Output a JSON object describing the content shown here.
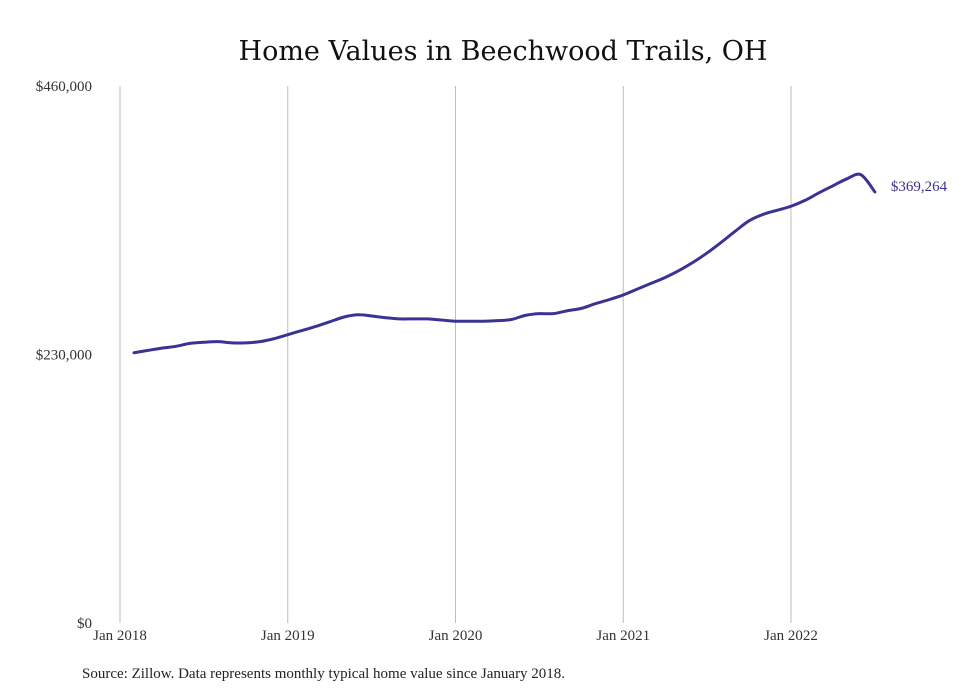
{
  "chart_data": {
    "type": "line",
    "title": "Home Values in Beechwood Trails, OH",
    "xlabel": "",
    "ylabel": "",
    "ylim": [
      0,
      460000
    ],
    "yticks": [
      {
        "value": 0,
        "label": "$0"
      },
      {
        "value": 230000,
        "label": "$230,000"
      },
      {
        "value": 460000,
        "label": "$460,000"
      }
    ],
    "xticks": [
      {
        "value": "2018-01",
        "label": "Jan 2018"
      },
      {
        "value": "2019-01",
        "label": "Jan 2019"
      },
      {
        "value": "2020-01",
        "label": "Jan 2020"
      },
      {
        "value": "2021-01",
        "label": "Jan 2021"
      },
      {
        "value": "2022-01",
        "label": "Jan 2022"
      }
    ],
    "grid": "vertical",
    "end_label": "$369,264",
    "series": [
      {
        "color": "#3a3393",
        "x": [
          "2018-02",
          "2018-03",
          "2018-04",
          "2018-05",
          "2018-06",
          "2018-07",
          "2018-08",
          "2018-09",
          "2018-10",
          "2018-11",
          "2018-12",
          "2019-01",
          "2019-02",
          "2019-03",
          "2019-04",
          "2019-05",
          "2019-06",
          "2019-07",
          "2019-08",
          "2019-09",
          "2019-10",
          "2019-11",
          "2019-12",
          "2020-01",
          "2020-02",
          "2020-03",
          "2020-04",
          "2020-05",
          "2020-06",
          "2020-07",
          "2020-08",
          "2020-09",
          "2020-10",
          "2020-11",
          "2020-12",
          "2021-01",
          "2021-02",
          "2021-03",
          "2021-04",
          "2021-05",
          "2021-06",
          "2021-07",
          "2021-08",
          "2021-09",
          "2021-10",
          "2021-11",
          "2021-12",
          "2022-01",
          "2022-02",
          "2022-03",
          "2022-04",
          "2022-05",
          "2022-06",
          "2022-07"
        ],
        "values": [
          231500,
          233500,
          235500,
          237000,
          239500,
          240500,
          241000,
          240000,
          240000,
          241000,
          243500,
          247000,
          250500,
          254000,
          258000,
          262000,
          264000,
          263000,
          261500,
          260500,
          260500,
          260500,
          259500,
          258500,
          258500,
          258500,
          259000,
          260000,
          263500,
          265000,
          265000,
          267500,
          269500,
          273500,
          277000,
          281000,
          286000,
          291000,
          296000,
          302000,
          309000,
          317000,
          326000,
          335500,
          344500,
          350000,
          353500,
          357000,
          362000,
          368500,
          374500,
          380500,
          384000,
          369264
        ]
      }
    ]
  },
  "footer": {
    "source": "Source: Zillow. Data represents monthly typical home value since January 2018."
  }
}
